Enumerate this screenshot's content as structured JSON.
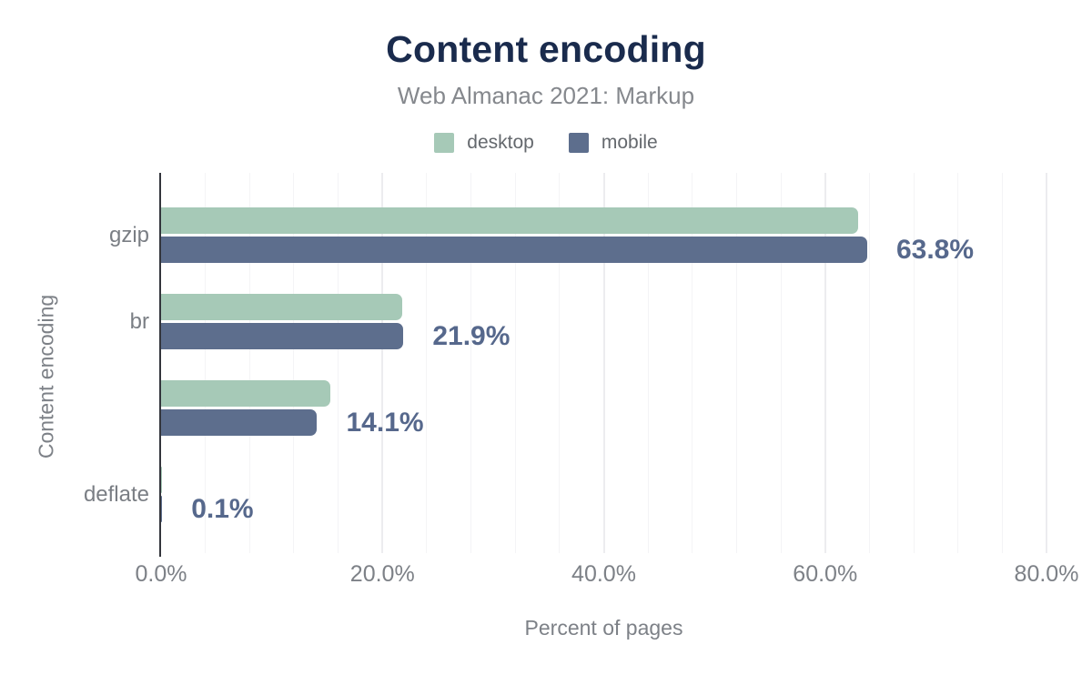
{
  "title": "Content encoding",
  "subtitle": "Web Almanac 2021: Markup",
  "legend": {
    "items": [
      {
        "label": "desktop",
        "color": "#a6c9b7"
      },
      {
        "label": "mobile",
        "color": "#5d6e8d"
      }
    ]
  },
  "chart_data": {
    "type": "bar",
    "orientation": "horizontal",
    "title": "Content encoding",
    "subtitle": "Web Almanac 2021: Markup",
    "xlabel": "Percent of pages",
    "ylabel": "Content encoding",
    "xlim": [
      0,
      80
    ],
    "x_ticks": [
      {
        "value": 0,
        "label": "0.0%"
      },
      {
        "value": 20,
        "label": "20.0%"
      },
      {
        "value": 40,
        "label": "40.0%"
      },
      {
        "value": 60,
        "label": "60.0%"
      },
      {
        "value": 80,
        "label": "80.0%"
      }
    ],
    "grid": {
      "minor_step_pct": 4,
      "major_step_pct": 20,
      "direction": "vertical"
    },
    "legend_position": "top",
    "categories": [
      "gzip",
      "br",
      "",
      "deflate"
    ],
    "series": [
      {
        "name": "desktop",
        "color": "#a6c9b7",
        "values": [
          63.0,
          21.8,
          15.3,
          0.1
        ]
      },
      {
        "name": "mobile",
        "color": "#5d6e8d",
        "values": [
          63.8,
          21.9,
          14.1,
          0.1
        ]
      }
    ],
    "value_labels": [
      "63.8%",
      "21.9%",
      "14.1%",
      "0.1%"
    ],
    "value_label_series": "mobile"
  },
  "colors": {
    "title": "#1a2b4d",
    "subtitle": "#85888d",
    "value_label": "#56688c",
    "axis_line": "#33353c",
    "gridline_minor": "#f4f4f6",
    "gridline_major": "#ececef",
    "tick_label": "#7d8187",
    "category_label": "#7a7e84"
  }
}
